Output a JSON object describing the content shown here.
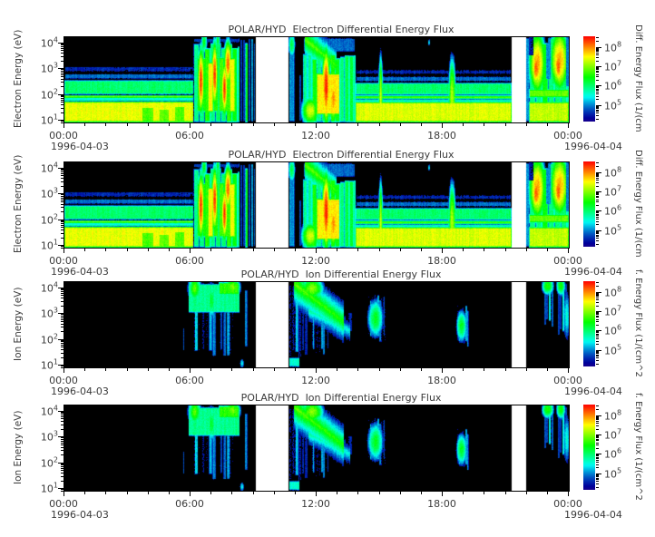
{
  "chart_data": {
    "type": "heatmap",
    "panels": [
      {
        "title": "POLAR/HYD  Electron Differential Energy Flux",
        "ylabel": "Electron Energy (eV)",
        "spectrum": "electron",
        "colorbar_label": "Diff. Energy Flux (1/(cm"
      },
      {
        "title": "POLAR/HYD  Electron Differential Energy Flux",
        "ylabel": "Electron Energy (eV)",
        "spectrum": "electron",
        "colorbar_label": "Diff. Energy Flux (1/(cm"
      },
      {
        "title": "POLAR/HYD  Ion Differential Energy Flux",
        "ylabel": "Ion Energy (eV)",
        "spectrum": "ion",
        "colorbar_label": "f. Energy Flux (1/(cm^2"
      },
      {
        "title": "POLAR/HYD  Ion Differential Energy Flux",
        "ylabel": "Ion Energy (eV)",
        "spectrum": "ion",
        "colorbar_label": "f. Energy Flux (1/(cm^2"
      }
    ],
    "x_axis": {
      "tick_labels": [
        "00:00",
        "06:00",
        "12:00",
        "18:00",
        "00:00"
      ],
      "tick_hours": [
        0,
        6,
        12,
        18,
        24
      ],
      "minor_step_hours": 1,
      "date_left": "1996-04-03",
      "date_right": "1996-04-04",
      "range_hours": [
        0,
        24
      ]
    },
    "y_axis": {
      "tick_exponents": [
        4,
        3,
        2,
        1
      ],
      "log_range": [
        0.9,
        4.2
      ]
    },
    "colorbar": {
      "tick_exponents": [
        8,
        7,
        6,
        5
      ],
      "log_range": [
        4.1,
        8.5
      ]
    },
    "data_gaps_hours": [
      [
        9.1,
        10.68
      ],
      [
        21.28,
        21.95
      ]
    ],
    "colors": {
      "background": "#ffffff",
      "frame": "#000000",
      "text": "#3a3a3a",
      "scale_low": "#0000a0",
      "scale_high": "#ff0000"
    },
    "spectra": {
      "electron": [
        {
          "shape": "band",
          "t": [
            0,
            6.15
          ],
          "e": [
            0.9,
            1.72
          ],
          "f": 7.35
        },
        {
          "shape": "band",
          "t": [
            0,
            6.15
          ],
          "e": [
            1.72,
            1.82
          ],
          "f": 6.45
        },
        {
          "shape": "band",
          "t": [
            0,
            6.15
          ],
          "e": [
            1.82,
            1.97
          ],
          "f": 6.85
        },
        {
          "shape": "band",
          "t": [
            0,
            6.15
          ],
          "e": [
            1.97,
            2.55
          ],
          "f": 5.95
        },
        {
          "shape": "band",
          "t": [
            0,
            6.15
          ],
          "e": [
            2.55,
            2.82
          ],
          "f": 4.85
        },
        {
          "shape": "band",
          "t": [
            0,
            6.15
          ],
          "e": [
            2.82,
            3.1
          ],
          "f": 4.5
        },
        {
          "shape": "band",
          "mode": "min",
          "t": [
            3.7,
            4.25
          ],
          "e": [
            0.9,
            1.45
          ],
          "f": 6.7
        },
        {
          "shape": "band",
          "mode": "min",
          "t": [
            4.55,
            4.95
          ],
          "e": [
            0.9,
            1.4
          ],
          "f": 6.75
        },
        {
          "shape": "band",
          "mode": "min",
          "t": [
            5.25,
            5.7
          ],
          "e": [
            0.9,
            1.5
          ],
          "f": 6.7
        },
        {
          "shape": "columns",
          "t": [
            6.15,
            8.35
          ],
          "e": [
            0.9,
            4.0
          ],
          "f": 6.6,
          "period": 0.26,
          "depth": 0.9
        },
        {
          "shape": "band",
          "t": [
            6.15,
            8.35
          ],
          "e": [
            3.95,
            4.2
          ],
          "f": 4.6
        },
        {
          "shape": "columns",
          "t": [
            6.3,
            8.15
          ],
          "e": [
            1.3,
            3.45
          ],
          "f": 7.55,
          "period": 0.26,
          "depth": 1.3
        },
        {
          "shape": "blob",
          "c": [
            6.5,
            2.5
          ],
          "r": [
            0.1,
            0.85
          ],
          "f": 8.3
        },
        {
          "shape": "blob",
          "c": [
            6.65,
            4.0
          ],
          "r": [
            0.12,
            0.35
          ],
          "f": 6.3
        },
        {
          "shape": "blob",
          "c": [
            7.15,
            2.75
          ],
          "r": [
            0.09,
            0.85
          ],
          "f": 8.35
        },
        {
          "shape": "blob",
          "c": [
            7.3,
            4.05
          ],
          "r": [
            0.1,
            0.3
          ],
          "f": 6.2
        },
        {
          "shape": "blob",
          "c": [
            7.62,
            2.2
          ],
          "r": [
            0.1,
            0.7
          ],
          "f": 8.25
        },
        {
          "shape": "blob",
          "c": [
            7.78,
            3.2
          ],
          "r": [
            0.13,
            0.6
          ],
          "f": 8.0
        },
        {
          "shape": "columns",
          "t": [
            8.35,
            9.1
          ],
          "e": [
            0.9,
            4.2
          ],
          "f": 6.45,
          "period": 0.13,
          "depth": 2.2
        },
        {
          "shape": "band",
          "t": [
            10.68,
            10.97
          ],
          "e": [
            0.9,
            4.2
          ],
          "f": 5.0
        },
        {
          "shape": "blob",
          "c": [
            10.82,
            3.9
          ],
          "r": [
            0.13,
            0.4
          ],
          "f": 6.2
        },
        {
          "shape": "columns",
          "t": [
            10.97,
            11.35
          ],
          "e": [
            0.9,
            3.0
          ],
          "f": 4.75,
          "period": 0.1,
          "depth": 1.1
        },
        {
          "shape": "columns",
          "t": [
            11.35,
            13.85
          ],
          "e": [
            0.9,
            3.6
          ],
          "f": 6.5,
          "period": 0.22,
          "depth": 0.8
        },
        {
          "shape": "band",
          "t": [
            11.35,
            13.85
          ],
          "e": [
            3.6,
            4.2
          ],
          "f": 4.8
        },
        {
          "shape": "wedge",
          "p0": [
            11.45,
            4.1
          ],
          "p1": [
            12.95,
            3.1
          ],
          "th": 0.5,
          "f": 6.85
        },
        {
          "shape": "band",
          "t": [
            12.0,
            13.1
          ],
          "e": [
            1.2,
            2.8
          ],
          "f": 7.5
        },
        {
          "shape": "blob",
          "c": [
            12.45,
            2.3
          ],
          "r": [
            0.13,
            1.0
          ],
          "f": 8.35
        },
        {
          "shape": "blob",
          "c": [
            12.8,
            1.8
          ],
          "r": [
            0.16,
            0.6
          ],
          "f": 7.9
        },
        {
          "shape": "blob",
          "c": [
            11.7,
            1.35
          ],
          "r": [
            0.3,
            0.4
          ],
          "f": 7.3
        },
        {
          "shape": "band",
          "t": [
            13.85,
            21.28
          ],
          "e": [
            0.9,
            1.7
          ],
          "f": 7.3
        },
        {
          "shape": "band",
          "t": [
            13.85,
            21.28
          ],
          "e": [
            1.7,
            1.8
          ],
          "f": 6.4
        },
        {
          "shape": "band",
          "t": [
            13.85,
            21.28
          ],
          "e": [
            1.8,
            1.95
          ],
          "f": 6.8
        },
        {
          "shape": "band",
          "t": [
            13.85,
            21.28
          ],
          "e": [
            1.95,
            2.45
          ],
          "f": 5.95
        },
        {
          "shape": "band",
          "t": [
            13.85,
            21.28
          ],
          "e": [
            2.45,
            2.72
          ],
          "f": 4.85
        },
        {
          "shape": "band",
          "t": [
            13.85,
            21.28
          ],
          "e": [
            2.72,
            2.98
          ],
          "f": 4.5
        },
        {
          "shape": "blob",
          "c": [
            15.05,
            1.8
          ],
          "r": [
            0.08,
            1.2
          ],
          "f": 7.2
        },
        {
          "shape": "blob",
          "c": [
            18.45,
            1.9
          ],
          "r": [
            0.13,
            1.1
          ],
          "f": 7.1
        },
        {
          "shape": "blob",
          "c": [
            17.35,
            4.0
          ],
          "r": [
            0.05,
            0.12
          ],
          "f": 5.5
        },
        {
          "shape": "band",
          "t": [
            21.95,
            22.12
          ],
          "e": [
            0.9,
            4.2
          ],
          "f": 5.0
        },
        {
          "shape": "columns",
          "t": [
            22.12,
            24
          ],
          "e": [
            0.9,
            4.2
          ],
          "f": 6.45,
          "period": 0.3,
          "depth": 0.7
        },
        {
          "shape": "band",
          "t": [
            22.12,
            24
          ],
          "e": [
            1.85,
            2.2
          ],
          "f": 6.8
        },
        {
          "shape": "band",
          "t": [
            22.12,
            24
          ],
          "e": [
            0.9,
            1.7
          ],
          "f": 7.2
        },
        {
          "shape": "blob",
          "c": [
            22.5,
            3.2
          ],
          "r": [
            0.27,
            0.85
          ],
          "f": 7.85
        },
        {
          "shape": "blob",
          "c": [
            22.45,
            3.0
          ],
          "r": [
            0.13,
            0.5
          ],
          "f": 8.2
        },
        {
          "shape": "blob",
          "c": [
            23.55,
            3.3
          ],
          "r": [
            0.3,
            0.85
          ],
          "f": 7.85
        },
        {
          "shape": "blob",
          "c": [
            23.5,
            3.1
          ],
          "r": [
            0.13,
            0.5
          ],
          "f": 8.25
        },
        {
          "shape": "band",
          "mode": "min",
          "t": [
            22.9,
            23.12
          ],
          "e": [
            2.6,
            4.2
          ],
          "f": 5.0
        },
        {
          "shape": "band",
          "mode": "min",
          "t": [
            23.88,
            24
          ],
          "e": [
            2.3,
            4.2
          ],
          "f": 4.9
        },
        {
          "shape": "band",
          "mode": "min",
          "t": [
            22.12,
            22.32
          ],
          "e": [
            3.5,
            4.2
          ],
          "f": 4.4
        }
      ],
      "ion": [
        {
          "shape": "columns",
          "t": [
            5.5,
            5.72
          ],
          "e": [
            1.5,
            2.7
          ],
          "f": 4.8,
          "period": 0.07,
          "depth": 1.0
        },
        {
          "shape": "columns",
          "t": [
            5.85,
            8.35
          ],
          "e": [
            1.25,
            4.2
          ],
          "f": 5.35,
          "period": 0.17,
          "depth": 1.5,
          "jag": "both"
        },
        {
          "shape": "band",
          "t": [
            5.9,
            8.35
          ],
          "e": [
            3.0,
            4.15
          ],
          "f": 5.8
        },
        {
          "shape": "blob",
          "c": [
            6.2,
            3.95
          ],
          "r": [
            0.24,
            0.4
          ],
          "f": 6.7
        },
        {
          "shape": "blob",
          "c": [
            7.0,
            3.5
          ],
          "r": [
            0.16,
            0.55
          ],
          "f": 6.3
        },
        {
          "shape": "band",
          "t": [
            7.35,
            8.3
          ],
          "e": [
            3.7,
            4.2
          ],
          "f": 6.55
        },
        {
          "shape": "blob",
          "c": [
            8.0,
            4.0
          ],
          "r": [
            0.28,
            0.28
          ],
          "f": 6.9
        },
        {
          "shape": "columns",
          "t": [
            8.35,
            8.8
          ],
          "e": [
            1.4,
            4.2
          ],
          "f": 5.15,
          "period": 0.12,
          "depth": 1.6,
          "jag": "both"
        },
        {
          "shape": "blob",
          "c": [
            8.45,
            1.05
          ],
          "r": [
            0.1,
            0.18
          ],
          "f": 5.4
        },
        {
          "shape": "columns",
          "t": [
            10.68,
            11.6
          ],
          "e": [
            1.2,
            4.2
          ],
          "f": 5.35,
          "period": 0.15,
          "depth": 1.2,
          "jag": "both"
        },
        {
          "shape": "band",
          "t": [
            10.68,
            11.2
          ],
          "e": [
            0.9,
            1.3
          ],
          "f": 5.5
        },
        {
          "shape": "wedge",
          "p0": [
            10.9,
            4.15
          ],
          "p1": [
            13.3,
            2.65
          ],
          "th": 0.55,
          "f": 6.8
        },
        {
          "shape": "blob",
          "c": [
            11.8,
            3.95
          ],
          "r": [
            0.4,
            0.32
          ],
          "f": 7.0
        },
        {
          "shape": "wedge",
          "p0": [
            11.6,
            3.1
          ],
          "p1": [
            13.6,
            2.3
          ],
          "th": 0.45,
          "f": 5.8
        },
        {
          "shape": "columns",
          "t": [
            11.6,
            12.6
          ],
          "e": [
            1.3,
            3.2
          ],
          "f": 5.25,
          "period": 0.1,
          "depth": 1.3,
          "jag": "both"
        },
        {
          "shape": "columns",
          "t": [
            12.6,
            13.7
          ],
          "e": [
            2.2,
            3.2
          ],
          "f": 4.95,
          "period": 0.1,
          "depth": 1.1,
          "jag": "both"
        },
        {
          "shape": "columns",
          "t": [
            14.35,
            15.3
          ],
          "e": [
            1.8,
            3.8
          ],
          "f": 5.2,
          "period": 0.09,
          "depth": 1.2,
          "jag": "both"
        },
        {
          "shape": "blob",
          "c": [
            14.8,
            2.8
          ],
          "r": [
            0.3,
            0.6
          ],
          "f": 6.25
        },
        {
          "shape": "columns",
          "t": [
            18.6,
            19.3
          ],
          "e": [
            1.6,
            3.4
          ],
          "f": 5.2,
          "period": 0.08,
          "depth": 1.2,
          "jag": "both"
        },
        {
          "shape": "blob",
          "c": [
            18.9,
            2.5
          ],
          "r": [
            0.2,
            0.5
          ],
          "f": 6.3
        },
        {
          "shape": "columns",
          "t": [
            20.22,
            20.42
          ],
          "e": [
            2.1,
            3.0
          ],
          "f": 4.75,
          "period": 0.07,
          "depth": 1.0
        },
        {
          "shape": "columns",
          "t": [
            22.8,
            23.3
          ],
          "e": [
            2.4,
            4.2
          ],
          "f": 5.5,
          "period": 0.12,
          "depth": 1.0,
          "jag": "both"
        },
        {
          "shape": "blob",
          "c": [
            23.0,
            4.05
          ],
          "r": [
            0.22,
            0.28
          ],
          "f": 6.55
        },
        {
          "shape": "columns",
          "t": [
            23.45,
            24
          ],
          "e": [
            2.0,
            4.2
          ],
          "f": 5.5,
          "period": 0.12,
          "depth": 1.0,
          "jag": "both"
        },
        {
          "shape": "blob",
          "c": [
            23.62,
            4.05
          ],
          "r": [
            0.17,
            0.3
          ],
          "f": 6.55
        },
        {
          "shape": "blob",
          "c": [
            23.9,
            2.9
          ],
          "r": [
            0.16,
            0.9
          ],
          "f": 5.5
        }
      ]
    }
  }
}
